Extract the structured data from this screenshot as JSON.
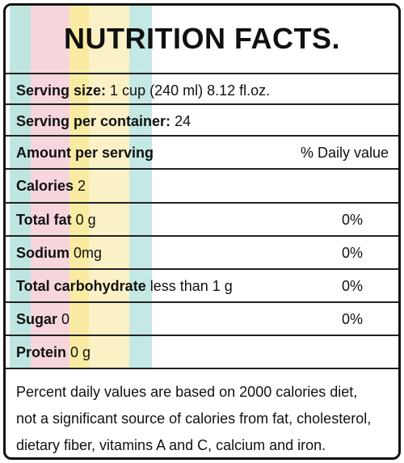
{
  "title": "NUTRITION FACTS.",
  "rows": [
    {
      "label": "Serving size:",
      "value": "1 cup (240 ml) 8.12 fl.oz."
    },
    {
      "label": "Serving per container:",
      "value": "24"
    },
    {
      "label": "Amount per serving",
      "daily": "% Daily value"
    },
    {
      "label": "Calories",
      "value": "2"
    },
    {
      "label": "Total fat",
      "value": "0 g",
      "daily": "0%"
    },
    {
      "label": "Sodium",
      "value": "0mg",
      "daily": "0%"
    },
    {
      "label": "Total carbohydrate",
      "value": "less than 1 g",
      "daily": "0%"
    },
    {
      "label": "Sugar",
      "value": "0",
      "daily": "0%"
    },
    {
      "label": "Protein",
      "value": "0 g"
    }
  ],
  "footer": [
    "Percent daily values are based on 2000 calories diet,",
    "not a significant source of calories from fat, cholesterol,",
    "dietary fiber,  vitamins A and C, calcium and iron."
  ]
}
